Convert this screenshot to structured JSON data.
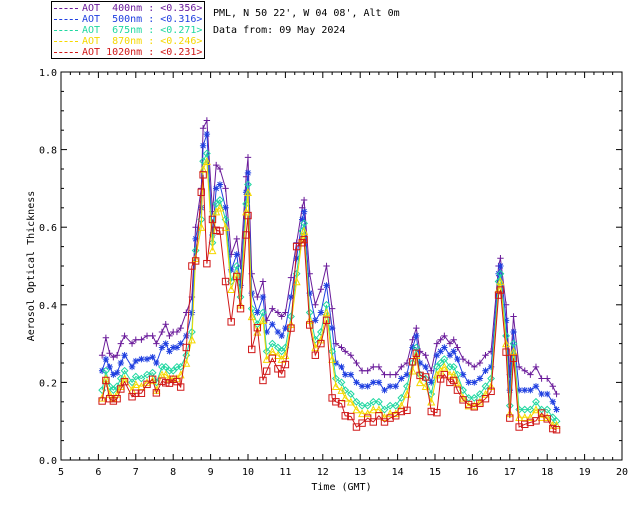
{
  "site": {
    "location": "PML, N 50 22', W 04 08', Alt 0m",
    "date": "Data from: 09 May 2024"
  },
  "legend": [
    {
      "label": "AOT  400nm : <0.356>",
      "color": "#6a1b9a"
    },
    {
      "label": "AOT  500nm : <0.316>",
      "color": "#1f3fe0"
    },
    {
      "label": "AOT  675nm : <0.271>",
      "color": "#20d8a0"
    },
    {
      "label": "AOT  870nm : <0.246>",
      "color": "#f5d800"
    },
    {
      "label": "AOT 1020nm : <0.231>",
      "color": "#d01818"
    }
  ],
  "chart_data": {
    "type": "line",
    "xlabel": "Time (GMT)",
    "ylabel": "Aerosol Optical Thickness",
    "xlim": [
      5,
      20
    ],
    "ylim": [
      0.0,
      1.0
    ],
    "xticks": [
      5,
      6,
      7,
      8,
      9,
      10,
      11,
      12,
      13,
      14,
      15,
      16,
      17,
      18,
      19,
      20
    ],
    "yticks": [
      "0.0",
      "0.2",
      "0.4",
      "0.6",
      "0.8",
      "1.0"
    ],
    "x": [
      6.1,
      6.2,
      6.3,
      6.4,
      6.5,
      6.6,
      6.7,
      6.9,
      7.0,
      7.15,
      7.3,
      7.45,
      7.55,
      7.7,
      7.8,
      7.9,
      8.0,
      8.1,
      8.2,
      8.35,
      8.5,
      8.6,
      8.75,
      8.8,
      8.9,
      9.05,
      9.15,
      9.25,
      9.4,
      9.55,
      9.7,
      9.8,
      9.95,
      10.0,
      10.1,
      10.25,
      10.4,
      10.5,
      10.65,
      10.8,
      10.9,
      11.0,
      11.15,
      11.3,
      11.45,
      11.5,
      11.65,
      11.8,
      11.95,
      12.1,
      12.25,
      12.35,
      12.5,
      12.6,
      12.75,
      12.9,
      13.05,
      13.2,
      13.35,
      13.5,
      13.65,
      13.8,
      13.95,
      14.1,
      14.25,
      14.4,
      14.5,
      14.6,
      14.75,
      14.9,
      15.05,
      15.15,
      15.25,
      15.4,
      15.5,
      15.6,
      15.75,
      15.9,
      16.05,
      16.2,
      16.35,
      16.5,
      16.7,
      16.75,
      16.9,
      17.0,
      17.1,
      17.25,
      17.4,
      17.55,
      17.7,
      17.85,
      18.0,
      18.15,
      18.25
    ],
    "series": [
      {
        "name": "AOT  400nm",
        "values": [
          0.27,
          0.315,
          0.275,
          0.265,
          0.27,
          0.3,
          0.32,
          0.3,
          0.31,
          0.31,
          0.32,
          0.32,
          0.3,
          0.33,
          0.35,
          0.32,
          0.33,
          0.33,
          0.34,
          0.38,
          0.42,
          0.6,
          0.7,
          0.855,
          0.875,
          0.64,
          0.76,
          0.75,
          0.7,
          0.53,
          0.57,
          0.5,
          0.73,
          0.78,
          0.48,
          0.42,
          0.46,
          0.36,
          0.39,
          0.38,
          0.37,
          0.38,
          0.47,
          0.56,
          0.65,
          0.67,
          0.48,
          0.4,
          0.44,
          0.5,
          0.39,
          0.3,
          0.29,
          0.28,
          0.27,
          0.25,
          0.23,
          0.23,
          0.24,
          0.24,
          0.22,
          0.22,
          0.22,
          0.24,
          0.25,
          0.31,
          0.34,
          0.28,
          0.27,
          0.23,
          0.3,
          0.31,
          0.32,
          0.3,
          0.31,
          0.29,
          0.26,
          0.25,
          0.24,
          0.25,
          0.27,
          0.28,
          0.5,
          0.52,
          0.4,
          0.22,
          0.37,
          0.24,
          0.23,
          0.22,
          0.24,
          0.21,
          0.21,
          0.19,
          0.17
        ]
      },
      {
        "name": "AOT  500nm",
        "values": [
          0.23,
          0.26,
          0.24,
          0.22,
          0.225,
          0.25,
          0.27,
          0.24,
          0.255,
          0.26,
          0.26,
          0.265,
          0.25,
          0.29,
          0.3,
          0.28,
          0.29,
          0.29,
          0.3,
          0.32,
          0.38,
          0.57,
          0.65,
          0.81,
          0.84,
          0.58,
          0.7,
          0.71,
          0.65,
          0.49,
          0.53,
          0.45,
          0.69,
          0.74,
          0.43,
          0.38,
          0.42,
          0.33,
          0.35,
          0.33,
          0.32,
          0.34,
          0.42,
          0.52,
          0.62,
          0.64,
          0.43,
          0.36,
          0.38,
          0.45,
          0.34,
          0.25,
          0.24,
          0.22,
          0.22,
          0.2,
          0.19,
          0.19,
          0.2,
          0.2,
          0.18,
          0.19,
          0.19,
          0.21,
          0.22,
          0.29,
          0.32,
          0.25,
          0.24,
          0.2,
          0.27,
          0.28,
          0.29,
          0.27,
          0.28,
          0.26,
          0.22,
          0.2,
          0.2,
          0.21,
          0.23,
          0.24,
          0.48,
          0.5,
          0.36,
          0.18,
          0.33,
          0.18,
          0.18,
          0.18,
          0.19,
          0.17,
          0.17,
          0.15,
          0.13
        ]
      },
      {
        "name": "AOT  675nm",
        "values": [
          0.18,
          0.23,
          0.19,
          0.18,
          0.19,
          0.21,
          0.23,
          0.2,
          0.215,
          0.21,
          0.22,
          0.225,
          0.2,
          0.24,
          0.24,
          0.23,
          0.23,
          0.24,
          0.24,
          0.27,
          0.33,
          0.54,
          0.62,
          0.77,
          0.79,
          0.56,
          0.66,
          0.67,
          0.62,
          0.46,
          0.5,
          0.42,
          0.66,
          0.71,
          0.39,
          0.35,
          0.38,
          0.28,
          0.3,
          0.29,
          0.28,
          0.29,
          0.37,
          0.48,
          0.59,
          0.61,
          0.38,
          0.31,
          0.33,
          0.4,
          0.28,
          0.21,
          0.2,
          0.18,
          0.17,
          0.15,
          0.14,
          0.14,
          0.15,
          0.15,
          0.13,
          0.14,
          0.14,
          0.16,
          0.19,
          0.25,
          0.29,
          0.22,
          0.21,
          0.17,
          0.24,
          0.25,
          0.26,
          0.24,
          0.24,
          0.22,
          0.18,
          0.16,
          0.16,
          0.17,
          0.19,
          0.21,
          0.46,
          0.48,
          0.32,
          0.14,
          0.3,
          0.13,
          0.13,
          0.13,
          0.15,
          0.13,
          0.13,
          0.11,
          0.1
        ]
      },
      {
        "name": "AOT  870nm",
        "values": [
          0.16,
          0.21,
          0.17,
          0.16,
          0.17,
          0.19,
          0.21,
          0.18,
          0.195,
          0.19,
          0.2,
          0.205,
          0.18,
          0.22,
          0.22,
          0.21,
          0.21,
          0.21,
          0.22,
          0.25,
          0.31,
          0.52,
          0.6,
          0.75,
          0.77,
          0.54,
          0.64,
          0.65,
          0.6,
          0.44,
          0.48,
          0.4,
          0.64,
          0.69,
          0.37,
          0.33,
          0.36,
          0.26,
          0.28,
          0.27,
          0.26,
          0.27,
          0.35,
          0.46,
          0.57,
          0.59,
          0.36,
          0.29,
          0.31,
          0.38,
          0.26,
          0.19,
          0.18,
          0.16,
          0.15,
          0.13,
          0.12,
          0.12,
          0.13,
          0.13,
          0.11,
          0.12,
          0.12,
          0.14,
          0.17,
          0.23,
          0.27,
          0.2,
          0.19,
          0.15,
          0.22,
          0.23,
          0.24,
          0.22,
          0.22,
          0.2,
          0.16,
          0.14,
          0.14,
          0.15,
          0.17,
          0.19,
          0.44,
          0.46,
          0.3,
          0.12,
          0.28,
          0.11,
          0.11,
          0.11,
          0.13,
          0.11,
          0.11,
          0.09,
          0.09
        ]
      },
      {
        "name": "AOT 1020nm",
        "values": [
          0.152,
          0.205,
          0.158,
          0.152,
          0.158,
          0.183,
          0.202,
          0.163,
          0.172,
          0.172,
          0.195,
          0.208,
          0.173,
          0.203,
          0.199,
          0.198,
          0.208,
          0.202,
          0.188,
          0.29,
          0.5,
          0.513,
          0.69,
          0.735,
          0.506,
          0.62,
          0.592,
          0.59,
          0.46,
          0.356,
          0.473,
          0.39,
          0.58,
          0.63,
          0.285,
          0.341,
          0.205,
          0.229,
          0.262,
          0.235,
          0.222,
          0.246,
          0.34,
          0.55,
          0.56,
          0.568,
          0.348,
          0.27,
          0.3,
          0.36,
          0.16,
          0.15,
          0.145,
          0.114,
          0.112,
          0.085,
          0.095,
          0.108,
          0.098,
          0.114,
          0.098,
          0.108,
          0.114,
          0.125,
          0.128,
          0.253,
          0.275,
          0.218,
          0.214,
          0.125,
          0.122,
          0.209,
          0.22,
          0.2,
          0.205,
          0.18,
          0.155,
          0.143,
          0.137,
          0.146,
          0.158,
          0.177,
          0.425,
          0.438,
          0.278,
          0.108,
          0.262,
          0.085,
          0.092,
          0.097,
          0.101,
          0.121,
          0.106,
          0.081,
          0.078
        ]
      }
    ],
    "markers": [
      "plus",
      "star",
      "diamond",
      "triangle",
      "square"
    ],
    "grid": false,
    "legend_position": "top-left outside plot"
  }
}
